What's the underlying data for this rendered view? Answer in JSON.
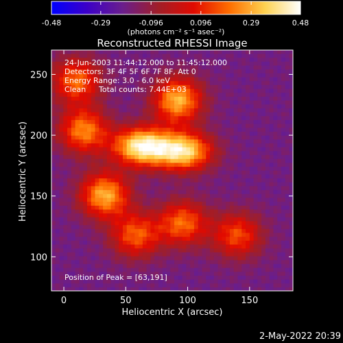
{
  "chart_data": {
    "type": "heatmap",
    "title": "Reconstructed RHESSI Image",
    "xlabel": "Heliocentric X (arcsec)",
    "ylabel": "Heliocentric Y (arcsec)",
    "xlim": [
      -10,
      185
    ],
    "ylim": [
      72,
      270
    ],
    "x_ticks": [
      0,
      50,
      100,
      150
    ],
    "y_ticks": [
      100,
      150,
      200,
      250
    ],
    "colorbar": {
      "min": -0.48,
      "max": 0.48,
      "tick_values": [
        -0.48,
        -0.29,
        -0.096,
        0.096,
        0.29,
        0.48
      ],
      "tick_labels": [
        "-0.48",
        "-0.29",
        "-0.096",
        "0.096",
        "0.29",
        "0.48"
      ],
      "units_label": "(photons cm⁻² s⁻¹ asec⁻²)",
      "colors": [
        "#0000ff",
        "#3c00c8",
        "#6a1e8c",
        "#a01e28",
        "#e10a00",
        "#ff6e00",
        "#ffd250",
        "#ffffff"
      ]
    },
    "annotations": {
      "time": "24-Jun-2003 11:44:12.000 to 11:45:12.000",
      "detectors": "Detectors: 3F 4F 5F 6F 7F 8F, Att 0",
      "energy": "Energy Range: 3.0 - 6.0 keV",
      "method": "Clean",
      "counts": "Total counts: 7.44E+03",
      "peak": "Position of Peak = [63,191]"
    },
    "peak": [
      63,
      191
    ],
    "background_level": -0.17,
    "sources": [
      {
        "x": 63,
        "y": 191,
        "peak": 0.44
      },
      {
        "x": 97,
        "y": 187,
        "peak": 0.38
      },
      {
        "x": 92,
        "y": 229,
        "peak": 0.31
      },
      {
        "x": 33,
        "y": 151,
        "peak": 0.3
      },
      {
        "x": 16,
        "y": 204,
        "peak": 0.24
      },
      {
        "x": 58,
        "y": 118,
        "peak": 0.18
      },
      {
        "x": 96,
        "y": 128,
        "peak": 0.2
      },
      {
        "x": 140,
        "y": 118,
        "peak": 0.16
      },
      {
        "x": 10,
        "y": 245,
        "peak": 0.2
      }
    ]
  },
  "footer": {
    "date": "2-May-2022 20:39"
  }
}
